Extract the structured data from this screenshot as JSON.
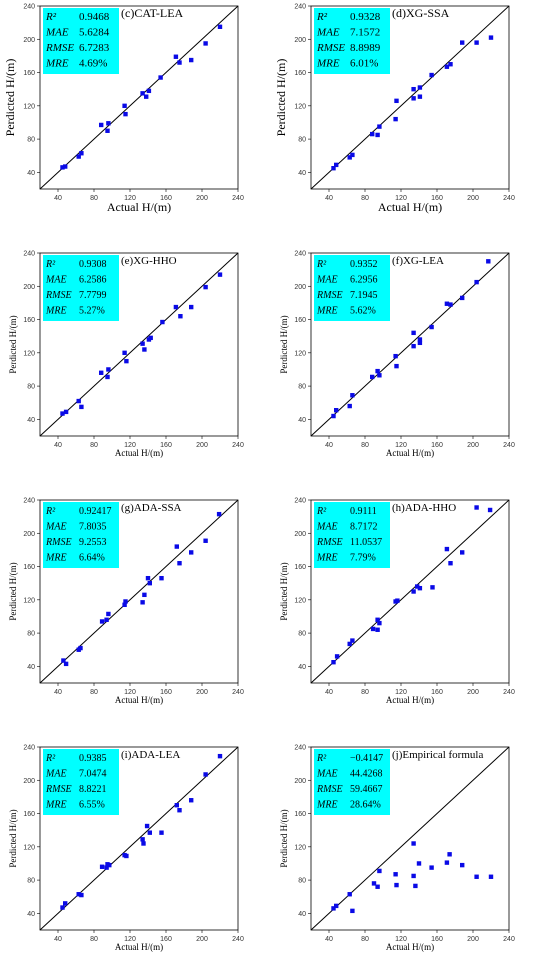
{
  "chart_data": [
    {
      "type": "scatter",
      "title": "(c)CAT-LEA",
      "xlabel": "Actual H/(m)",
      "ylabel": "Perdicted H/(m)",
      "xlim": [
        20,
        240
      ],
      "ylim": [
        20,
        240
      ],
      "xticks": [
        "40",
        "80",
        "120",
        "160",
        "200",
        "240"
      ],
      "yticks": [
        "40",
        "80",
        "120",
        "160",
        "200",
        "240"
      ],
      "metrics": [
        {
          "label": "R²",
          "value": "0.9468"
        },
        {
          "label": "MAE",
          "value": "5.6284"
        },
        {
          "label": "RMSE",
          "value": "6.7283"
        },
        {
          "label": "MRE",
          "value": "4.69%"
        }
      ],
      "reference_line": "y = x",
      "points": [
        [
          45,
          46
        ],
        [
          48,
          47
        ],
        [
          63,
          59
        ],
        [
          66,
          63
        ],
        [
          88,
          97
        ],
        [
          95,
          90
        ],
        [
          96,
          99
        ],
        [
          114,
          120
        ],
        [
          115,
          110
        ],
        [
          134,
          135
        ],
        [
          138,
          131
        ],
        [
          141,
          138
        ],
        [
          154,
          154
        ],
        [
          171,
          179
        ],
        [
          175,
          172
        ],
        [
          188,
          175
        ],
        [
          204,
          195
        ],
        [
          220,
          215
        ]
      ]
    },
    {
      "type": "scatter",
      "title": "(d)XG-SSA",
      "xlabel": "Actual H/(m)",
      "ylabel": "Perdicted H/(m)",
      "xlim": [
        20,
        240
      ],
      "ylim": [
        20,
        240
      ],
      "xticks": [
        "40",
        "80",
        "120",
        "160",
        "200",
        "240"
      ],
      "yticks": [
        "40",
        "80",
        "120",
        "160",
        "200",
        "240"
      ],
      "metrics": [
        {
          "label": "R²",
          "value": "0.9328"
        },
        {
          "label": "MAE",
          "value": "7.1572"
        },
        {
          "label": "RMSE",
          "value": "8.8989"
        },
        {
          "label": "MRE",
          "value": "6.01%"
        }
      ],
      "reference_line": "y = x",
      "points": [
        [
          45,
          45
        ],
        [
          48,
          49
        ],
        [
          63,
          58
        ],
        [
          66,
          61
        ],
        [
          88,
          86
        ],
        [
          94,
          85
        ],
        [
          96,
          95
        ],
        [
          114,
          104
        ],
        [
          115,
          126
        ],
        [
          134,
          140
        ],
        [
          134,
          129
        ],
        [
          141,
          142
        ],
        [
          141,
          131
        ],
        [
          154,
          157
        ],
        [
          171,
          167
        ],
        [
          175,
          170
        ],
        [
          188,
          196
        ],
        [
          204,
          196
        ],
        [
          220,
          202
        ]
      ]
    },
    {
      "type": "scatter",
      "title": "(e)XG-HHO",
      "xlabel": "Actual H/(m)",
      "ylabel": "Perdicted H/(m)",
      "xlim": [
        20,
        240
      ],
      "ylim": [
        20,
        240
      ],
      "xticks": [
        "40",
        "80",
        "120",
        "160",
        "200",
        "240"
      ],
      "yticks": [
        "40",
        "80",
        "120",
        "160",
        "200",
        "240"
      ],
      "metrics": [
        {
          "label": "R²",
          "value": "0.9308"
        },
        {
          "label": "MAE",
          "value": "6.2586"
        },
        {
          "label": "RMSE",
          "value": "7.7799"
        },
        {
          "label": "MRE",
          "value": "5.27%"
        }
      ],
      "reference_line": "y = x",
      "points": [
        [
          45,
          47
        ],
        [
          49,
          49
        ],
        [
          63,
          62
        ],
        [
          66,
          55
        ],
        [
          88,
          96
        ],
        [
          95,
          91
        ],
        [
          96,
          100
        ],
        [
          114,
          120
        ],
        [
          116,
          110
        ],
        [
          134,
          131
        ],
        [
          136,
          124
        ],
        [
          141,
          136
        ],
        [
          143,
          138
        ],
        [
          156,
          157
        ],
        [
          171,
          175
        ],
        [
          176,
          164
        ],
        [
          188,
          175
        ],
        [
          204,
          199
        ],
        [
          220,
          214
        ]
      ]
    },
    {
      "type": "scatter",
      "title": "(f)XG-LEA",
      "xlabel": "Actual H/(m)",
      "ylabel": "Perdicted H/(m)",
      "xlim": [
        20,
        240
      ],
      "ylim": [
        20,
        240
      ],
      "xticks": [
        "40",
        "80",
        "120",
        "160",
        "200",
        "240"
      ],
      "yticks": [
        "40",
        "80",
        "120",
        "160",
        "200",
        "240"
      ],
      "metrics": [
        {
          "label": "R²",
          "value": "0.9352"
        },
        {
          "label": "MAE",
          "value": "6.2956"
        },
        {
          "label": "RMSE",
          "value": "7.1945"
        },
        {
          "label": "MRE",
          "value": "5.62%"
        }
      ],
      "reference_line": "y = x",
      "points": [
        [
          45,
          44
        ],
        [
          48,
          51
        ],
        [
          63,
          56
        ],
        [
          66,
          69
        ],
        [
          88,
          91
        ],
        [
          94,
          98
        ],
        [
          96,
          93
        ],
        [
          114,
          116
        ],
        [
          115,
          104
        ],
        [
          134,
          144
        ],
        [
          134,
          128
        ],
        [
          141,
          132
        ],
        [
          141,
          136
        ],
        [
          154,
          151
        ],
        [
          171,
          179
        ],
        [
          175,
          178
        ],
        [
          188,
          186
        ],
        [
          204,
          205
        ],
        [
          217,
          230
        ]
      ]
    },
    {
      "type": "scatter",
      "title": "(g)ADA-SSA",
      "xlabel": "Actual H/(m)",
      "ylabel": "Perdicted H/(m)",
      "xlim": [
        20,
        240
      ],
      "ylim": [
        20,
        240
      ],
      "xticks": [
        "40",
        "80",
        "120",
        "160",
        "200",
        "240"
      ],
      "yticks": [
        "40",
        "80",
        "120",
        "160",
        "200",
        "240"
      ],
      "metrics": [
        {
          "label": "R²",
          "value": "0.92417"
        },
        {
          "label": "MAE",
          "value": "7.8035"
        },
        {
          "label": "RMSE",
          "value": "9.2553"
        },
        {
          "label": "MRE",
          "value": "6.64%"
        }
      ],
      "reference_line": "y = x",
      "points": [
        [
          46,
          47
        ],
        [
          49,
          43
        ],
        [
          63,
          60
        ],
        [
          65,
          62
        ],
        [
          89,
          94
        ],
        [
          94,
          96
        ],
        [
          96,
          103
        ],
        [
          114,
          114
        ],
        [
          115,
          118
        ],
        [
          134,
          117
        ],
        [
          136,
          126
        ],
        [
          140,
          146
        ],
        [
          142,
          140
        ],
        [
          155,
          146
        ],
        [
          172,
          184
        ],
        [
          175,
          164
        ],
        [
          188,
          177
        ],
        [
          204,
          191
        ],
        [
          219,
          223
        ]
      ]
    },
    {
      "type": "scatter",
      "title": "(h)ADA-HHO",
      "xlabel": "Actual H/(m)",
      "ylabel": "Perdicted H/(m)",
      "xlim": [
        20,
        240
      ],
      "ylim": [
        20,
        240
      ],
      "xticks": [
        "40",
        "80",
        "120",
        "160",
        "200",
        "240"
      ],
      "yticks": [
        "40",
        "80",
        "120",
        "160",
        "200",
        "240"
      ],
      "metrics": [
        {
          "label": "R²",
          "value": "0.9111"
        },
        {
          "label": "MAE",
          "value": "8.7172"
        },
        {
          "label": "RMSE",
          "value": "11.0537"
        },
        {
          "label": "MRE",
          "value": "7.79%"
        }
      ],
      "reference_line": "y = x",
      "points": [
        [
          45,
          45
        ],
        [
          49,
          52
        ],
        [
          63,
          67
        ],
        [
          66,
          71
        ],
        [
          89,
          85
        ],
        [
          94,
          84
        ],
        [
          94,
          96
        ],
        [
          96,
          92
        ],
        [
          114,
          118
        ],
        [
          116,
          119
        ],
        [
          134,
          130
        ],
        [
          138,
          136
        ],
        [
          141,
          134
        ],
        [
          155,
          135
        ],
        [
          171,
          181
        ],
        [
          175,
          164
        ],
        [
          188,
          177
        ],
        [
          204,
          231
        ],
        [
          219,
          228
        ]
      ]
    },
    {
      "type": "scatter",
      "title": "(i)ADA-LEA",
      "xlabel": "Actual H/(m)",
      "ylabel": "Perdicted H/(m)",
      "xlim": [
        20,
        240
      ],
      "ylim": [
        20,
        240
      ],
      "xticks": [
        "40",
        "80",
        "120",
        "160",
        "200",
        "240"
      ],
      "yticks": [
        "40",
        "80",
        "120",
        "160",
        "200",
        "240"
      ],
      "metrics": [
        {
          "label": "R²",
          "value": "0.9385"
        },
        {
          "label": "MAE",
          "value": "7.0474"
        },
        {
          "label": "RMSE",
          "value": "8.8221"
        },
        {
          "label": "MRE",
          "value": "6.55%"
        }
      ],
      "reference_line": "y = x",
      "points": [
        [
          45,
          47
        ],
        [
          48,
          52
        ],
        [
          63,
          63
        ],
        [
          66,
          62
        ],
        [
          89,
          96
        ],
        [
          94,
          95
        ],
        [
          95,
          99
        ],
        [
          97,
          98
        ],
        [
          114,
          110
        ],
        [
          116,
          109
        ],
        [
          134,
          129
        ],
        [
          135,
          124
        ],
        [
          139,
          145
        ],
        [
          142,
          137
        ],
        [
          155,
          137
        ],
        [
          172,
          170
        ],
        [
          175,
          164
        ],
        [
          188,
          176
        ],
        [
          204,
          207
        ],
        [
          220,
          229
        ]
      ]
    },
    {
      "type": "scatter",
      "title": "(j)Empirical formula",
      "xlabel": "Actual H/(m)",
      "ylabel": "Perdicted H/(m)",
      "xlim": [
        20,
        240
      ],
      "ylim": [
        20,
        240
      ],
      "xticks": [
        "40",
        "80",
        "120",
        "160",
        "200",
        "240"
      ],
      "yticks": [
        "40",
        "80",
        "120",
        "160",
        "200",
        "240"
      ],
      "metrics": [
        {
          "label": "R²",
          "value": "−0.4147"
        },
        {
          "label": "MAE",
          "value": "44.4268"
        },
        {
          "label": "RMSE",
          "value": "59.4667"
        },
        {
          "label": "MRE",
          "value": "28.64%"
        }
      ],
      "reference_line": "y = x",
      "points": [
        [
          45,
          46
        ],
        [
          48,
          49
        ],
        [
          63,
          63
        ],
        [
          66,
          43
        ],
        [
          90,
          76
        ],
        [
          94,
          72
        ],
        [
          96,
          91
        ],
        [
          114,
          87
        ],
        [
          115,
          74
        ],
        [
          134,
          124
        ],
        [
          134,
          85
        ],
        [
          136,
          73
        ],
        [
          140,
          100
        ],
        [
          154,
          95
        ],
        [
          171,
          101
        ],
        [
          174,
          111
        ],
        [
          188,
          98
        ],
        [
          204,
          84
        ],
        [
          220,
          84
        ]
      ]
    }
  ]
}
